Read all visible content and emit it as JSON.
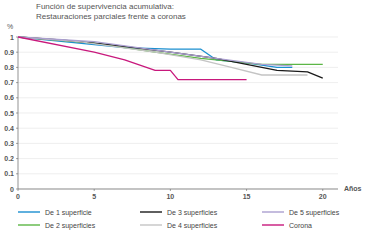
{
  "chart_data": {
    "type": "line",
    "title": [
      "Función de supervivencia acumulativa:",
      "Restauraciones parciales frente a coronas"
    ],
    "y_label": "%",
    "x_label": "Años",
    "xlim": [
      0,
      21
    ],
    "xticks": [
      0,
      5,
      10,
      15,
      20
    ],
    "ylim": [
      0,
      1
    ],
    "yticks": [
      0,
      0.1,
      0.2,
      0.3,
      0.4,
      0.5,
      0.6,
      0.7,
      0.8,
      0.9,
      1
    ],
    "grid": true,
    "legend": "bottom",
    "series": [
      {
        "name": "De 1 superficie",
        "color": "#1b8fd0",
        "x": [
          0,
          3,
          7,
          10,
          12,
          13,
          15,
          17,
          18
        ],
        "values": [
          1,
          0.97,
          0.93,
          0.92,
          0.92,
          0.85,
          0.83,
          0.8,
          0.8
        ]
      },
      {
        "name": "De 2 superficies",
        "color": "#5cb646",
        "x": [
          0,
          5,
          9,
          12,
          14,
          16,
          20
        ],
        "values": [
          1,
          0.96,
          0.9,
          0.86,
          0.84,
          0.82,
          0.82
        ]
      },
      {
        "name": "De 3 superficies",
        "color": "#1a1a1a",
        "x": [
          0,
          3,
          6,
          10,
          13,
          15,
          17,
          19,
          20
        ],
        "values": [
          1,
          0.98,
          0.95,
          0.9,
          0.86,
          0.82,
          0.78,
          0.77,
          0.73
        ]
      },
      {
        "name": "De 4 superficies",
        "color": "#c4c4c4",
        "x": [
          0,
          4,
          9,
          12,
          14,
          16,
          19
        ],
        "values": [
          1,
          0.97,
          0.9,
          0.85,
          0.8,
          0.75,
          0.75
        ]
      },
      {
        "name": "De 5 superficies",
        "color": "#ab9fd0",
        "x": [
          0,
          5,
          10,
          13,
          16,
          18
        ],
        "values": [
          1,
          0.97,
          0.9,
          0.86,
          0.82,
          0.81
        ]
      },
      {
        "name": "Corona",
        "color": "#c8187c",
        "x": [
          0,
          5,
          7,
          9,
          10,
          10.5,
          15
        ],
        "values": [
          1,
          0.9,
          0.85,
          0.78,
          0.78,
          0.72,
          0.72
        ]
      }
    ]
  }
}
